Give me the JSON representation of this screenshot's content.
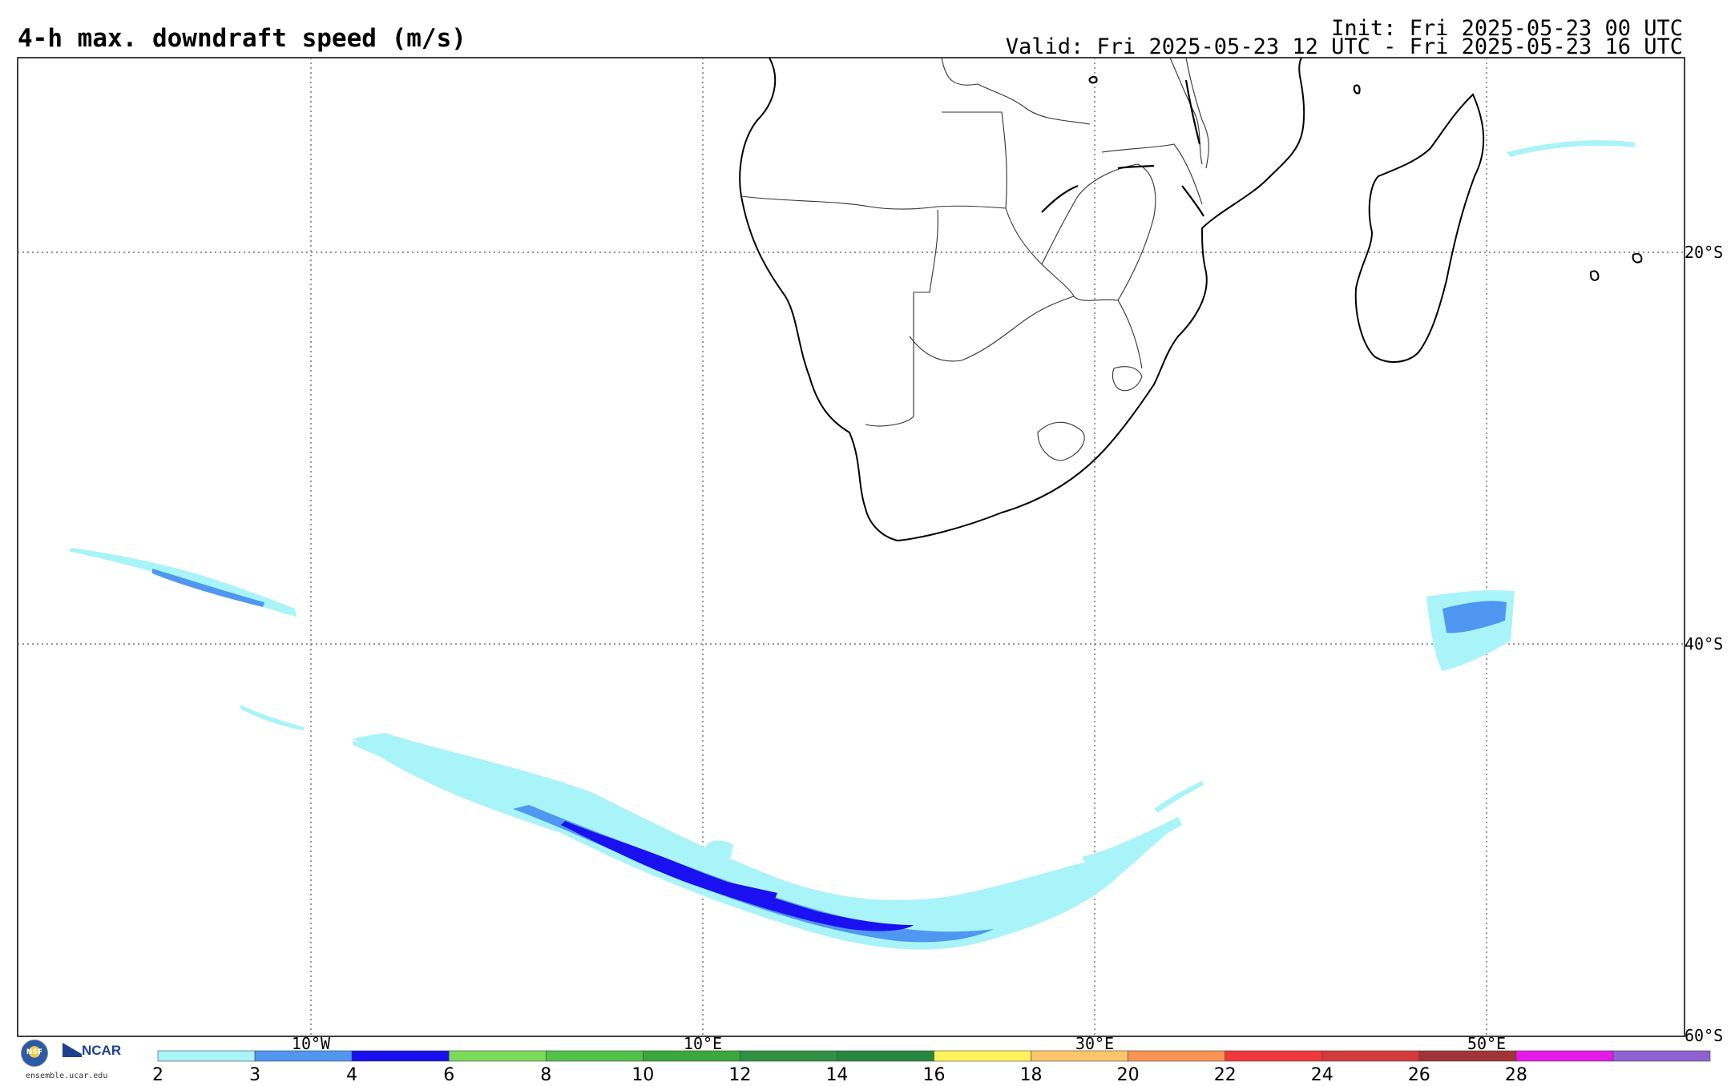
{
  "header": {
    "title": "4-h max. downdraft speed (m/s)",
    "init": "Init: Fri 2025-05-23 00 UTC",
    "valid": "Valid: Fri 2025-05-23 12 UTC - Fri 2025-05-23 16 UTC"
  },
  "map": {
    "lon_labels": [
      "10°W",
      "10°E",
      "30°E",
      "50°E"
    ],
    "lat_labels": [
      "20°S",
      "40°S",
      "60°S"
    ],
    "region": "southern Africa and South Atlantic / Indian Ocean"
  },
  "colorbar": {
    "ticks": [
      "2",
      "3",
      "4",
      "6",
      "8",
      "10",
      "12",
      "14",
      "16",
      "18",
      "20",
      "22",
      "24",
      "26",
      "28"
    ],
    "colors": [
      "#a8f4f8",
      "#4f97f0",
      "#1a10f0",
      "#79dc5a",
      "#52c248",
      "#3aa83c",
      "#2f9142",
      "#27873f",
      "#fff35c",
      "#fdc56a",
      "#fb9353",
      "#f2383a",
      "#d4393e",
      "#a13436",
      "#e51ae8",
      "#8f62d1"
    ]
  },
  "logo": {
    "nsf_text": "NSF",
    "ncar_text": "NCAR",
    "url": "ensemble.ucar.edu"
  }
}
